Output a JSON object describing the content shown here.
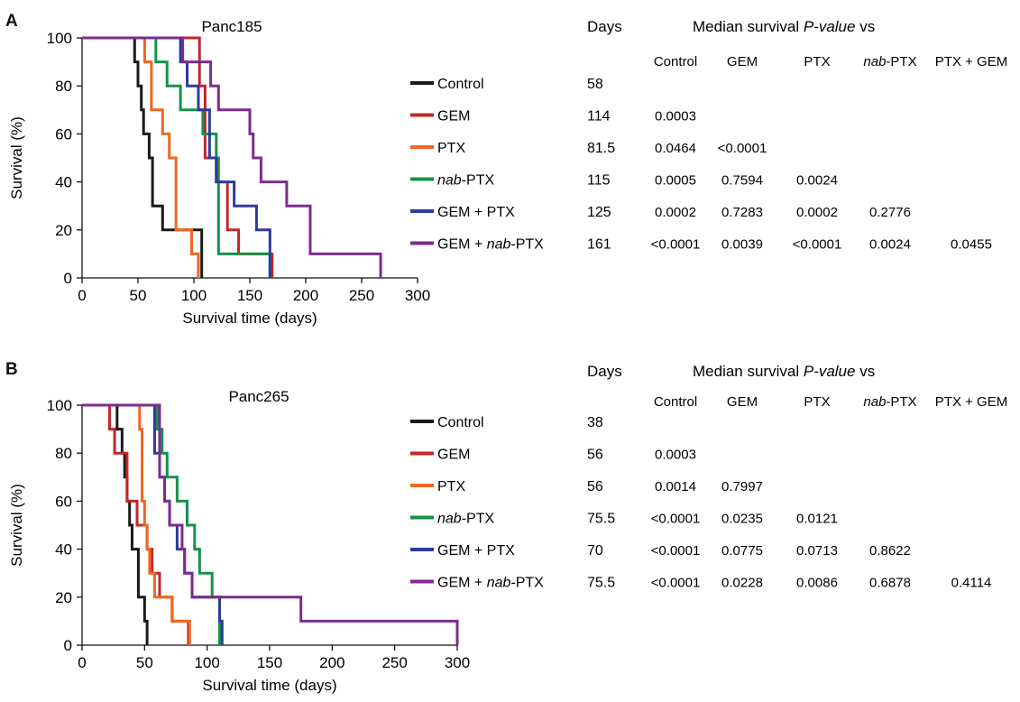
{
  "colors": {
    "Control": "#1a1a1a",
    "GEM": "#c0272d",
    "PTX": "#f26522",
    "nab-PTX": "#16924a",
    "GEM + PTX": "#2e3b9c",
    "GEM + nab-PTX": "#7f2a8f"
  },
  "panels": [
    {
      "letter": "A",
      "table": {
        "days_header": "Days",
        "pvalue_header_prefix": "Median survival ",
        "pvalue_header_italic": "P-value",
        "pvalue_header_suffix": " vs",
        "compare_headers": [
          {
            "pre": "",
            "ital": "",
            "post": "Control"
          },
          {
            "pre": "",
            "ital": "",
            "post": "GEM"
          },
          {
            "pre": "",
            "ital": "",
            "post": "PTX"
          },
          {
            "pre": "",
            "ital": "nab",
            "post": "-PTX"
          },
          {
            "pre": "",
            "ital": "",
            "post": "PTX + GEM"
          }
        ],
        "rows": [
          {
            "legend_pre": "Control",
            "legend_ital": "",
            "legend_post": "",
            "days": "58",
            "pvalues": []
          },
          {
            "legend_pre": "GEM",
            "legend_ital": "",
            "legend_post": "",
            "days": "114",
            "pvalues": [
              "0.0003"
            ]
          },
          {
            "legend_pre": "PTX",
            "legend_ital": "",
            "legend_post": "",
            "days": "81.5",
            "pvalues": [
              "0.0464",
              "<0.0001"
            ]
          },
          {
            "legend_pre": "",
            "legend_ital": "nab",
            "legend_post": "-PTX",
            "days": "115",
            "pvalues": [
              "0.0005",
              "0.7594",
              "0.0024"
            ]
          },
          {
            "legend_pre": "GEM + PTX",
            "legend_ital": "",
            "legend_post": "",
            "days": "125",
            "pvalues": [
              "0.0002",
              "0.7283",
              "0.0002",
              "0.2776"
            ]
          },
          {
            "legend_pre": "GEM + ",
            "legend_ital": "nab",
            "legend_post": "-PTX",
            "days": "161",
            "pvalues": [
              "<0.0001",
              "0.0039",
              "<0.0001",
              "0.0024",
              "0.0455"
            ]
          }
        ]
      }
    },
    {
      "letter": "B",
      "table": {
        "days_header": "Days",
        "pvalue_header_prefix": "Median survival ",
        "pvalue_header_italic": "P-value",
        "pvalue_header_suffix": " vs",
        "compare_headers": [
          {
            "pre": "",
            "ital": "",
            "post": "Control"
          },
          {
            "pre": "",
            "ital": "",
            "post": "GEM"
          },
          {
            "pre": "",
            "ital": "",
            "post": "PTX"
          },
          {
            "pre": "",
            "ital": "nab",
            "post": "-PTX"
          },
          {
            "pre": "",
            "ital": "",
            "post": "PTX + GEM"
          }
        ],
        "rows": [
          {
            "legend_pre": "Control",
            "legend_ital": "",
            "legend_post": "",
            "days": "38",
            "pvalues": []
          },
          {
            "legend_pre": "GEM",
            "legend_ital": "",
            "legend_post": "",
            "days": "56",
            "pvalues": [
              "0.0003"
            ]
          },
          {
            "legend_pre": "PTX",
            "legend_ital": "",
            "legend_post": "",
            "days": "56",
            "pvalues": [
              "0.0014",
              "0.7997"
            ]
          },
          {
            "legend_pre": "",
            "legend_ital": "nab",
            "legend_post": "-PTX",
            "days": "75.5",
            "pvalues": [
              "<0.0001",
              "0.0235",
              "0.0121"
            ]
          },
          {
            "legend_pre": "GEM + PTX",
            "legend_ital": "",
            "legend_post": "",
            "days": "70",
            "pvalues": [
              "<0.0001",
              "0.0775",
              "0.0713",
              "0.8622"
            ]
          },
          {
            "legend_pre": "GEM + ",
            "legend_ital": "nab",
            "legend_post": "-PTX",
            "days": "75.5",
            "pvalues": [
              "<0.0001",
              "0.0228",
              "0.0086",
              "0.6878",
              "0.4114"
            ]
          }
        ]
      }
    }
  ],
  "chart_data": [
    {
      "type": "line",
      "step": true,
      "title": "Panc185",
      "xlabel": "Survival time (days)",
      "ylabel": "Survival (%)",
      "xlim": [
        0,
        300
      ],
      "ylim": [
        0,
        100
      ],
      "xticks": [
        0,
        50,
        100,
        150,
        200,
        250,
        300
      ],
      "yticks": [
        0,
        20,
        40,
        60,
        80,
        100
      ],
      "grid": false,
      "legend": "right",
      "series": [
        {
          "name": "Control",
          "x": [
            0,
            47,
            50,
            53,
            55,
            60,
            63,
            72,
            107
          ],
          "y": [
            100,
            90,
            80,
            70,
            60,
            50,
            30,
            20,
            0
          ]
        },
        {
          "name": "GEM",
          "x": [
            0,
            105,
            110,
            120,
            130,
            140,
            170
          ],
          "y": [
            100,
            80,
            50,
            40,
            20,
            10,
            0
          ]
        },
        {
          "name": "PTX",
          "x": [
            0,
            56,
            62,
            72,
            78,
            84,
            98,
            104
          ],
          "y": [
            100,
            90,
            70,
            60,
            50,
            20,
            10,
            0
          ]
        },
        {
          "name": "nab-PTX",
          "x": [
            0,
            66,
            76,
            88,
            108,
            120,
            122,
            168
          ],
          "y": [
            100,
            90,
            80,
            70,
            60,
            50,
            10,
            0
          ]
        },
        {
          "name": "GEM + PTX",
          "x": [
            0,
            88,
            94,
            104,
            114,
            120,
            136,
            156,
            168
          ],
          "y": [
            100,
            90,
            80,
            70,
            50,
            40,
            30,
            20,
            0
          ]
        },
        {
          "name": "GEM + nab-PTX",
          "x": [
            0,
            90,
            115,
            122,
            150,
            153,
            160,
            183,
            204,
            267
          ],
          "y": [
            100,
            90,
            80,
            70,
            60,
            50,
            40,
            30,
            10,
            0
          ]
        }
      ]
    },
    {
      "type": "line",
      "step": true,
      "title": "Panc265",
      "xlabel": "Survival time (days)",
      "ylabel": "Survival (%)",
      "xlim": [
        0,
        300
      ],
      "ylim": [
        0,
        100
      ],
      "xticks": [
        0,
        50,
        100,
        150,
        200,
        250,
        300
      ],
      "yticks": [
        0,
        20,
        40,
        60,
        80,
        100
      ],
      "grid": false,
      "legend": "right",
      "series": [
        {
          "name": "Control",
          "x": [
            0,
            28,
            32,
            34,
            36,
            38,
            40,
            45,
            50,
            52
          ],
          "y": [
            100,
            90,
            80,
            70,
            60,
            50,
            40,
            20,
            10,
            0
          ]
        },
        {
          "name": "GEM",
          "x": [
            0,
            22,
            26,
            36,
            44,
            52,
            56,
            62,
            72,
            85
          ],
          "y": [
            100,
            90,
            80,
            60,
            50,
            40,
            30,
            20,
            10,
            0
          ]
        },
        {
          "name": "PTX",
          "x": [
            0,
            46,
            48,
            50,
            52,
            54,
            58,
            72,
            86
          ],
          "y": [
            100,
            90,
            60,
            50,
            40,
            30,
            20,
            10,
            0
          ]
        },
        {
          "name": "nab-PTX",
          "x": [
            0,
            60,
            64,
            68,
            76,
            84,
            90,
            94,
            104,
            110
          ],
          "y": [
            100,
            90,
            80,
            70,
            60,
            50,
            40,
            30,
            20,
            0
          ]
        },
        {
          "name": "GEM + PTX",
          "x": [
            0,
            58,
            62,
            66,
            70,
            76,
            82,
            88,
            110,
            112
          ],
          "y": [
            100,
            80,
            70,
            60,
            50,
            40,
            30,
            20,
            10,
            0
          ]
        },
        {
          "name": "GEM + nab-PTX",
          "x": [
            0,
            62,
            66,
            70,
            80,
            82,
            88,
            175,
            300
          ],
          "y": [
            100,
            70,
            60,
            50,
            40,
            30,
            20,
            10,
            0
          ]
        }
      ]
    }
  ]
}
